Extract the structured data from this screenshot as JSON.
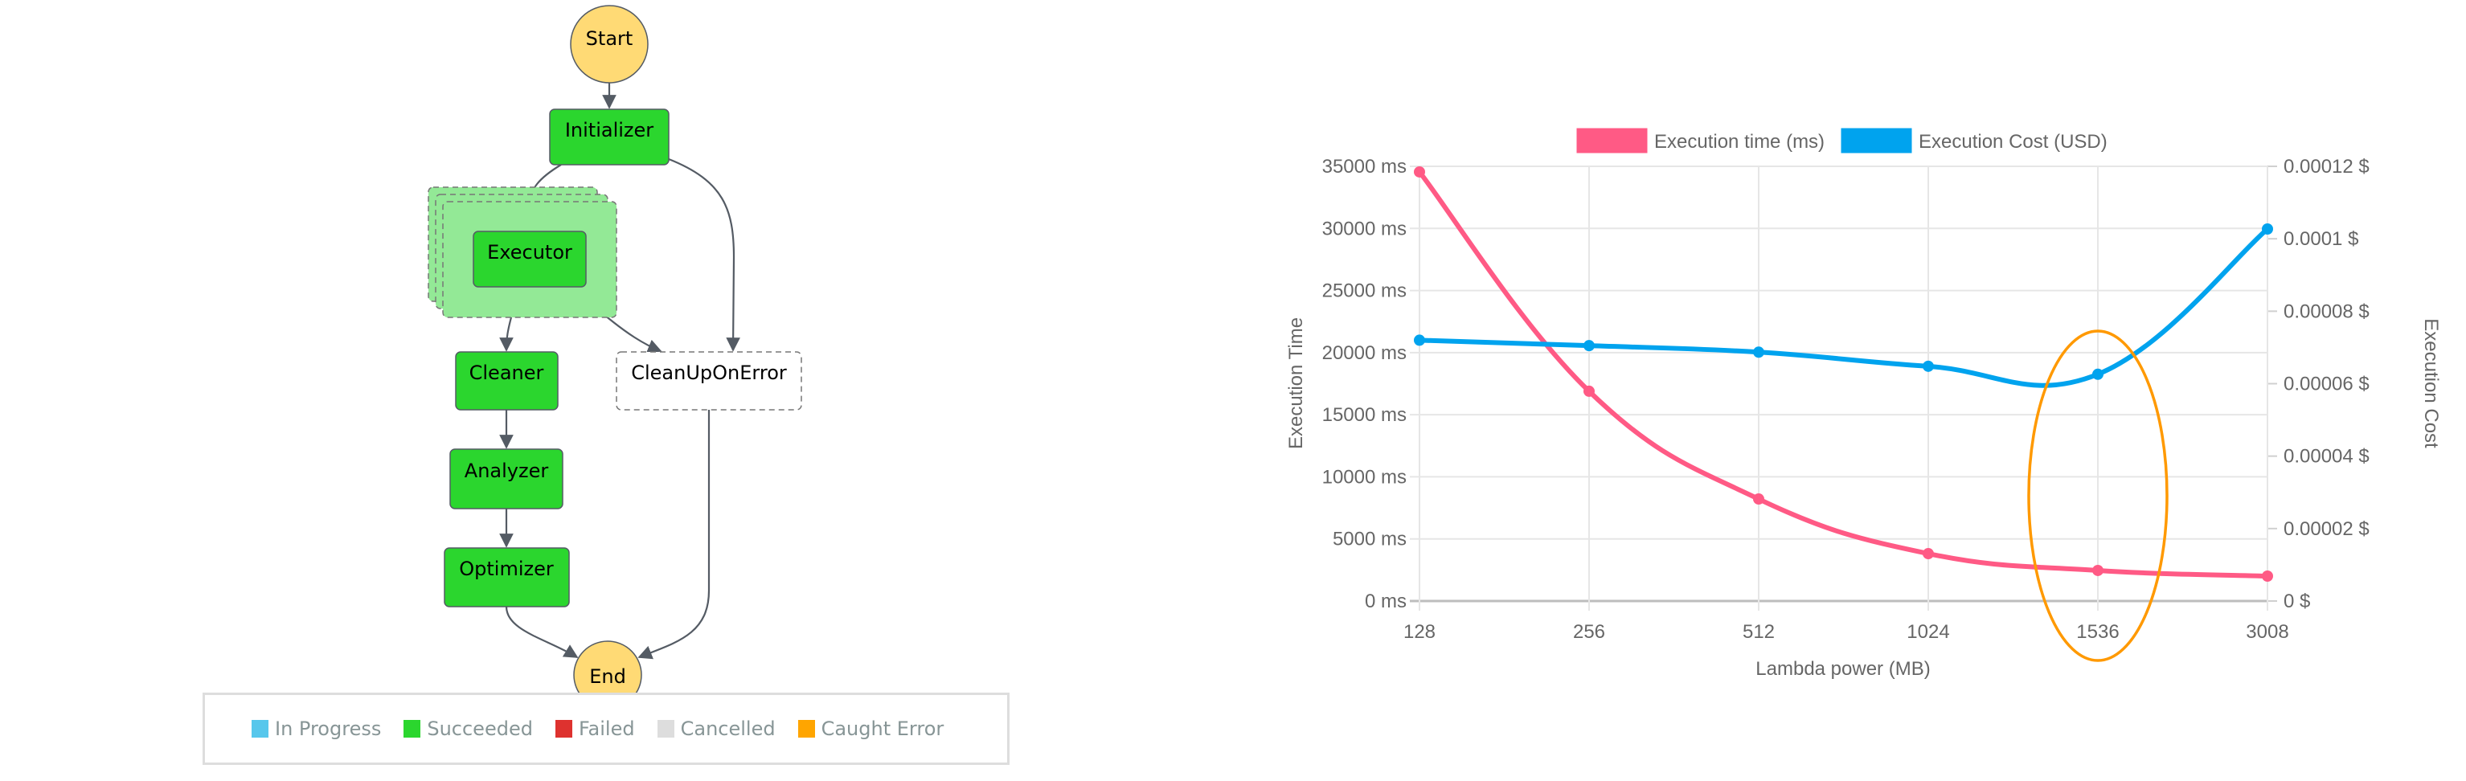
{
  "diagram": {
    "nodes": [
      {
        "id": "start",
        "label": "Start",
        "shape": "circle",
        "status": "terminal"
      },
      {
        "id": "initializer",
        "label": "Initializer",
        "shape": "rect",
        "status": "succeeded"
      },
      {
        "id": "executor",
        "label": "Executor",
        "shape": "map",
        "status": "succeeded"
      },
      {
        "id": "cleaner",
        "label": "Cleaner",
        "shape": "rect",
        "status": "succeeded"
      },
      {
        "id": "cleanuponerror",
        "label": "CleanUpOnError",
        "shape": "rect",
        "status": "not-run"
      },
      {
        "id": "analyzer",
        "label": "Analyzer",
        "shape": "rect",
        "status": "succeeded"
      },
      {
        "id": "optimizer",
        "label": "Optimizer",
        "shape": "rect",
        "status": "succeeded"
      },
      {
        "id": "end",
        "label": "End",
        "shape": "circle",
        "status": "terminal"
      }
    ],
    "legend": [
      {
        "label": "In Progress",
        "color": "#57c7ec"
      },
      {
        "label": "Succeeded",
        "color": "#2bd62e"
      },
      {
        "label": "Failed",
        "color": "#de322f"
      },
      {
        "label": "Cancelled",
        "color": "#dddddd"
      },
      {
        "label": "Caught Error",
        "color": "#ffa500"
      }
    ],
    "colors": {
      "succeeded": "#2bd62e",
      "map_bg": "#93e996",
      "terminal": "#ffda75",
      "edge": "#545b64"
    }
  },
  "chart_data": {
    "type": "line",
    "title": "",
    "categories": [
      "128",
      "256",
      "512",
      "1024",
      "1536",
      "3008"
    ],
    "xlabel": "Lambda power (MB)",
    "ylabel": "Execution Time",
    "y2label": "Execution Cost",
    "ylim": [
      0,
      35000
    ],
    "y2lim": [
      0,
      0.00012
    ],
    "yticks": [
      "0 ms",
      "5000 ms",
      "10000 ms",
      "15000 ms",
      "20000 ms",
      "25000 ms",
      "30000 ms",
      "35000 ms"
    ],
    "y2ticks": [
      "0 $",
      "0.00002 $",
      "0.00004 $",
      "0.00006 $",
      "0.00008 $",
      "0.0001 $",
      "0.00012 $"
    ],
    "grid": true,
    "legend_position": "top",
    "series": [
      {
        "name": "Execution time (ms)",
        "axis": "left",
        "color": "#ff5a85",
        "values": [
          34550,
          16890,
          8215,
          3815,
          2460,
          2005
        ]
      },
      {
        "name": "Execution Cost (USD)",
        "axis": "right",
        "color": "#00a3ee",
        "values": [
          7.2e-05,
          7.05e-05,
          6.87e-05,
          6.48e-05,
          6.26e-05,
          0.0001027
        ]
      }
    ],
    "annotations": [
      {
        "type": "ellipse",
        "around": "1536",
        "color": "#ff9900"
      }
    ]
  }
}
